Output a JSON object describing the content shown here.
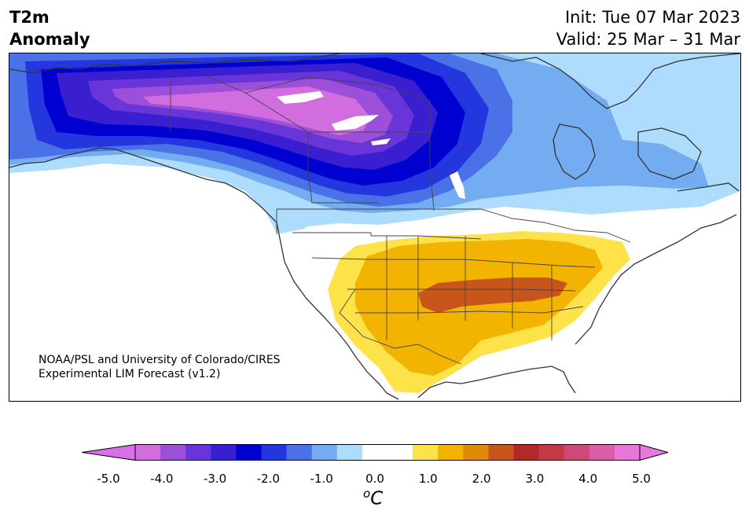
{
  "header": {
    "title_line1": "T2m",
    "title_line2": "Anomaly",
    "init": "Init: Tue 07 Mar 2023",
    "valid": "Valid: 25 Mar – 31 Mar"
  },
  "credit": {
    "line1": "NOAA/PSL and University of Colorado/CIRES",
    "line2": "Experimental LIM Forecast (v1.2)"
  },
  "colorbar": {
    "unit_base": "C",
    "unit_sup": "o",
    "ticks": [
      "-5.0",
      "-4.0",
      "-3.0",
      "-2.0",
      "-1.0",
      "0.0",
      "1.0",
      "2.0",
      "3.0",
      "4.0",
      "5.0"
    ],
    "colors": [
      "#d26de0",
      "#9c4fd8",
      "#6a35d8",
      "#3a1fd0",
      "#0000d0",
      "#2436dd",
      "#4a72e6",
      "#74acf2",
      "#aedcfc",
      "#ffffff",
      "#ffffff",
      "#fde24a",
      "#f2b400",
      "#e08a0c",
      "#c8561a",
      "#b52828",
      "#c43848",
      "#d04878",
      "#dc5ca8",
      "#e876d6"
    ],
    "extend_low": "#d870e8",
    "extend_high": "#e878e0"
  },
  "map": {
    "region": "North America",
    "field": "2-m temperature anomaly"
  }
}
